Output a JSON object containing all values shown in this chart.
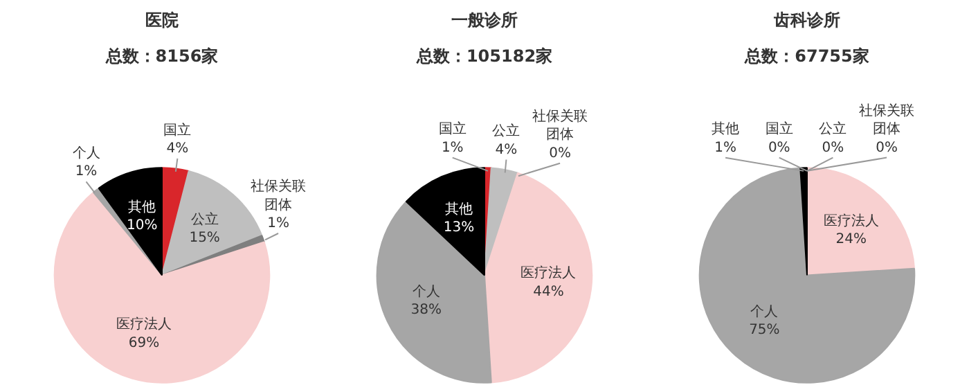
{
  "chart_data": [
    {
      "type": "pie",
      "title": "医院",
      "subtitle": "总数：8156家",
      "categories": [
        "国立",
        "公立",
        "社保关联团体",
        "医疗法人",
        "个人",
        "其他"
      ],
      "values": [
        4,
        15,
        1,
        69,
        1,
        10
      ],
      "value_labels": [
        "4%",
        "15%",
        "1%",
        "69%",
        "1%",
        "10%"
      ],
      "colors": [
        "#d9262b",
        "#bfbfbf",
        "#7f7f7f",
        "#f8d0d0",
        "#a6a6a6",
        "#000000"
      ]
    },
    {
      "type": "pie",
      "title": "一般诊所",
      "subtitle": "总数：105182家",
      "categories": [
        "国立",
        "公立",
        "社保关联团体",
        "医疗法人",
        "个人",
        "其他"
      ],
      "values": [
        1,
        4,
        0,
        44,
        38,
        13
      ],
      "value_labels": [
        "1%",
        "4%",
        "0%",
        "44%",
        "38%",
        "13%"
      ],
      "colors": [
        "#d9262b",
        "#bfbfbf",
        "#7f7f7f",
        "#f8d0d0",
        "#a6a6a6",
        "#000000"
      ]
    },
    {
      "type": "pie",
      "title": "齿科诊所",
      "subtitle": "总数：67755家",
      "categories": [
        "国立",
        "公立",
        "社保关联团体",
        "医疗法人",
        "个人",
        "其他"
      ],
      "values": [
        0,
        0,
        0,
        24,
        75,
        1
      ],
      "value_labels": [
        "0%",
        "0%",
        "0%",
        "24%",
        "75%",
        "1%"
      ],
      "colors": [
        "#d9262b",
        "#bfbfbf",
        "#7f7f7f",
        "#f8d0d0",
        "#a6a6a6",
        "#000000"
      ]
    }
  ]
}
